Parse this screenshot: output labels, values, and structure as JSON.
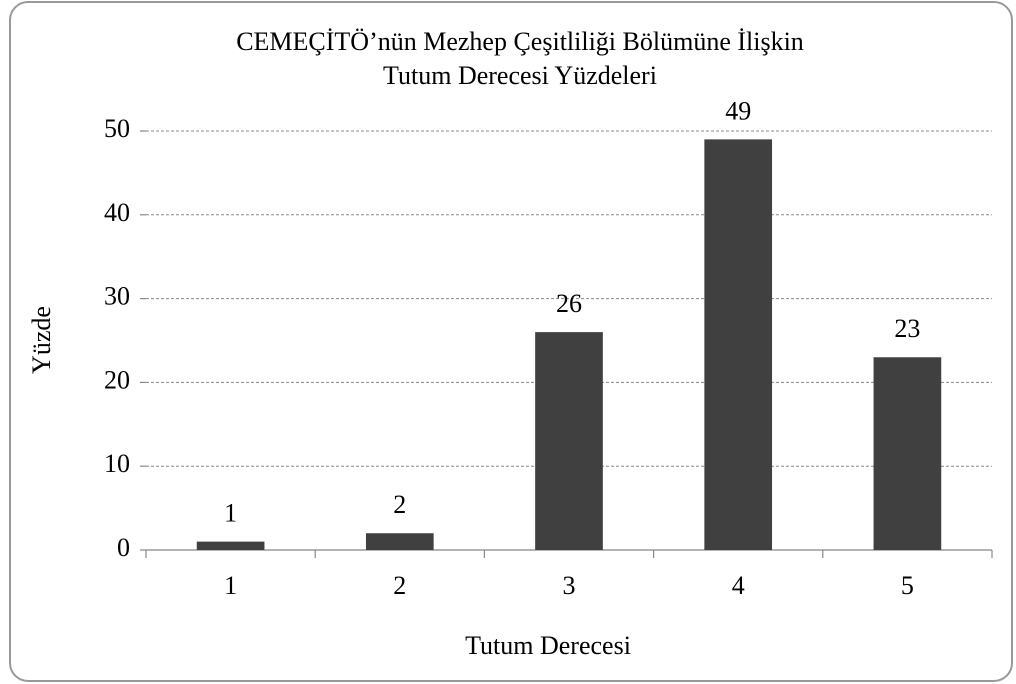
{
  "chart_data": {
    "type": "bar",
    "title": [
      "CEMEÇİTÖ’nün Mezhep Çeşitliliği Bölümüne İlişkin",
      "Tutum Derecesi Yüzdeleri"
    ],
    "x_label": "Tutum Derecesi",
    "y_label": "Yüzde",
    "categories": [
      "1",
      "2",
      "3",
      "4",
      "5"
    ],
    "values": [
      1,
      2,
      26,
      49,
      23
    ],
    "color": "#404040",
    "ylim": [
      0,
      50
    ],
    "yticks": [
      0,
      10,
      20,
      30,
      40,
      50
    ],
    "grid": true
  }
}
